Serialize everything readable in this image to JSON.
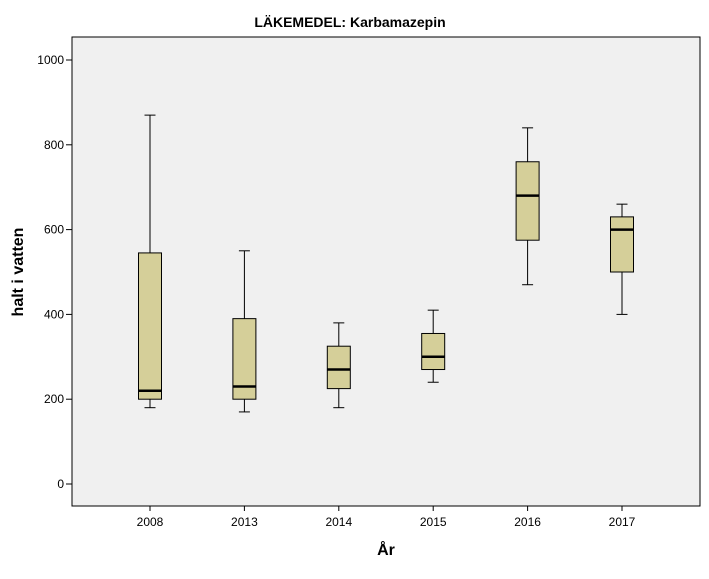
{
  "chart_data": {
    "type": "boxplot",
    "title": "LÄKEMEDEL: Karbamazepin",
    "xlabel": "År",
    "ylabel": "halt i vatten",
    "ylim": [
      -50,
      1050
    ],
    "yticks": [
      0,
      200,
      400,
      600,
      800,
      1000
    ],
    "grid": false,
    "box_color": "#d5cf99",
    "plot_background": "#f0f0f0",
    "categories": [
      "2008",
      "2013",
      "2014",
      "2015",
      "2016",
      "2017"
    ],
    "boxes": [
      {
        "category": "2008",
        "min": 180,
        "q1": 200,
        "median": 220,
        "q3": 545,
        "max": 870
      },
      {
        "category": "2013",
        "min": 170,
        "q1": 200,
        "median": 230,
        "q3": 390,
        "max": 550
      },
      {
        "category": "2014",
        "min": 180,
        "q1": 225,
        "median": 270,
        "q3": 325,
        "max": 380
      },
      {
        "category": "2015",
        "min": 240,
        "q1": 270,
        "median": 300,
        "q3": 355,
        "max": 410
      },
      {
        "category": "2016",
        "min": 470,
        "q1": 575,
        "median": 680,
        "q3": 760,
        "max": 840
      },
      {
        "category": "2017",
        "min": 400,
        "q1": 500,
        "median": 600,
        "q3": 630,
        "max": 660
      }
    ]
  }
}
